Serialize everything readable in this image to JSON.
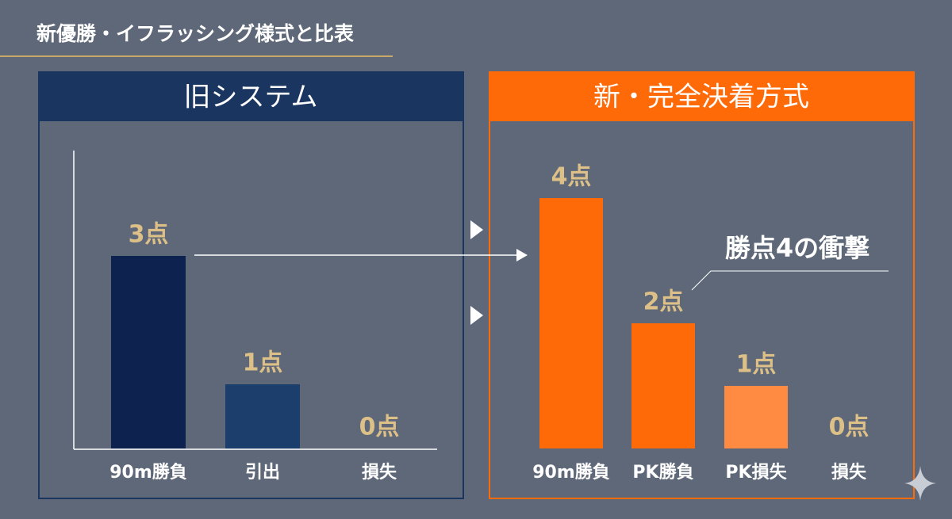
{
  "header": {
    "title": "新優勝・イフラッシング様式と比表"
  },
  "chart_data": [
    {
      "type": "bar",
      "title": "旧システム",
      "categories": [
        "90m勝負",
        "引出",
        "損失"
      ],
      "values": [
        3,
        1,
        0
      ],
      "value_labels": [
        "3点",
        "1点",
        "0点"
      ],
      "colors": [
        "#0e2250",
        "#1b3e6c",
        "#1b3e6c"
      ]
    },
    {
      "type": "bar",
      "title": "新・完全決着方式",
      "categories": [
        "90m勝負",
        "PK勝負",
        "PK損失",
        "損失"
      ],
      "values": [
        4,
        2,
        1,
        0
      ],
      "value_labels": [
        "4点",
        "2点",
        "1点",
        "0点"
      ],
      "colors": [
        "#ff6a08",
        "#ff6a08",
        "#ff8a42",
        "#ff8a42"
      ],
      "annotation": "勝点4の衝撃"
    }
  ]
}
